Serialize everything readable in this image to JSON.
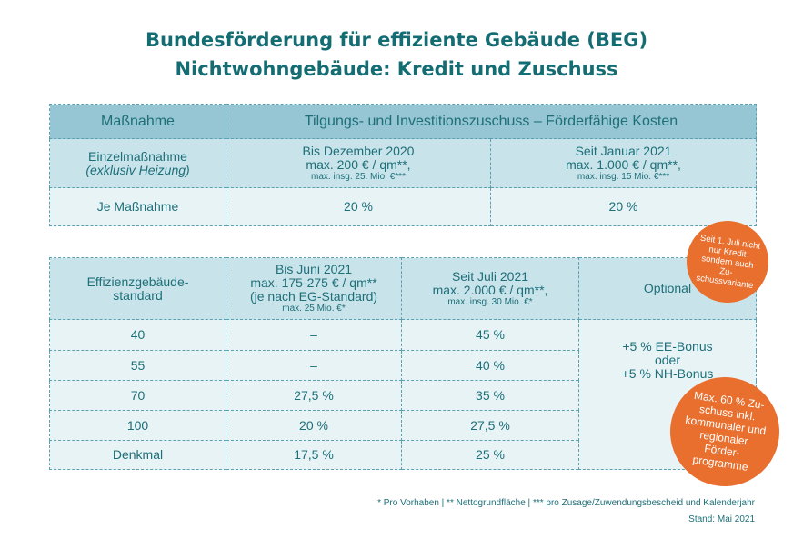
{
  "title": {
    "line1": "Bundesförderung für effiziente Gebäude (BEG)",
    "line2": "Nichtwohngebäude: Kredit und Zuschuss"
  },
  "table1": {
    "header": {
      "col1": "Maßnahme",
      "col2": "Tilgungs- und Investitionszuschuss – Förderfähige Kosten"
    },
    "row1": {
      "label": "Einzelmaßnahme",
      "label_sub": "(exklusiv Heizung)",
      "c1": {
        "l1": "Bis Dezember 2020",
        "l2": "max. 200 € / qm**,",
        "l3": "max. insg. 25. Mio. €***"
      },
      "c2": {
        "l1": "Seit Januar 2021",
        "l2": "max. 1.000 € / qm**,",
        "l3": "max. insg. 15 Mio. €***"
      }
    },
    "row2": {
      "label": "Je Maßnahme",
      "c1": "20 %",
      "c2": "20 %"
    }
  },
  "table2": {
    "header": {
      "col1": "Effizienzgebäude-standard",
      "col2": {
        "l1": "Bis Juni 2021",
        "l2": "max. 175-275 € / qm**",
        "l3": "(je nach EG-Standard)",
        "l4": "max. 25 Mio. €*"
      },
      "col3": {
        "l1": "Seit Juli 2021",
        "l2": "max. 2.000 € / qm**,",
        "l3": "max. insg. 30 Mio. €*"
      },
      "col4": "Optional"
    },
    "rows": [
      [
        "40",
        "–",
        "45 %"
      ],
      [
        "55",
        "–",
        "40 %"
      ],
      [
        "70",
        "27,5 %",
        "35 %"
      ],
      [
        "100",
        "20 %",
        "27,5 %"
      ],
      [
        "Denkmal",
        "17,5 %",
        "25 %"
      ]
    ],
    "optional": {
      "l1": "+5 % EE-Bonus",
      "l2": "oder",
      "l3": "+5 % NH-Bonus"
    }
  },
  "badges": {
    "b1": "Seit 1. Juli nicht nur Kredit- sondern auch Zu-schussvariante",
    "b2": "Max. 60 % Zu-schuss inkl. kommunaler und regionaler Förder-programme"
  },
  "footnote": "* Pro Vorhaben | ** Nettogrundfläche | *** pro Zusage/Zuwendungsbescheid und Kalenderjahr",
  "stand": "Stand: Mai 2021",
  "colors": {
    "title": "#136d72",
    "header": "#96c5d4",
    "subheader": "#c9e3eb",
    "row": "#e8f3f6",
    "badge": "#e86f2e"
  }
}
